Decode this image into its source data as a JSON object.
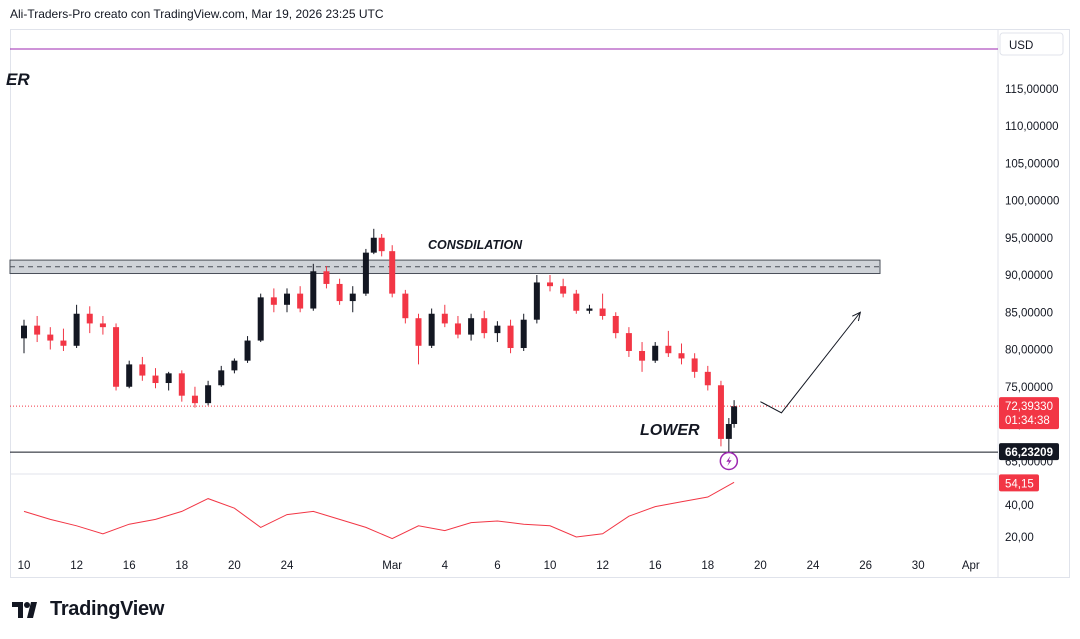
{
  "header": {
    "attribution": "Ali-Traders-Pro creato con TradingView.com, Mar 19, 2026 23:25 UTC"
  },
  "footer": {
    "brand": "TradingView"
  },
  "colors": {
    "up": "#131722",
    "down": "#f23645",
    "rsi": "#f23645",
    "zone_fill": "#cfd3d8",
    "resistance_line": "#9c27b0"
  },
  "chart_data": [
    {
      "type": "candlestick",
      "currency_label": "USD",
      "partial_title": "ER",
      "ylim": [
        65,
        120
      ],
      "y_ticks": [
        {
          "value": 115,
          "label": "115,00000"
        },
        {
          "value": 110,
          "label": "110,00000"
        },
        {
          "value": 105,
          "label": "105,00000"
        },
        {
          "value": 100,
          "label": "100,00000"
        },
        {
          "value": 95,
          "label": "95,00000"
        },
        {
          "value": 90,
          "label": "90,00000"
        },
        {
          "value": 85,
          "label": "85,00000"
        },
        {
          "value": 80,
          "label": "80,00000"
        },
        {
          "value": 75,
          "label": "75,00000"
        },
        {
          "value": 70,
          "label": "70,00000"
        },
        {
          "value": 65,
          "label": "65,00000"
        }
      ],
      "x_ticks": [
        {
          "day": 10,
          "label": "10"
        },
        {
          "day": 12,
          "label": "12"
        },
        {
          "day": 14,
          "label": "16"
        },
        {
          "day": 16,
          "label": "18"
        },
        {
          "day": 18,
          "label": "20"
        },
        {
          "day": 20,
          "label": "24"
        },
        {
          "day": 24,
          "label": "Mar"
        },
        {
          "day": 26,
          "label": "4"
        },
        {
          "day": 28,
          "label": "6"
        },
        {
          "day": 30,
          "label": "10"
        },
        {
          "day": 32,
          "label": "12"
        },
        {
          "day": 34,
          "label": "16"
        },
        {
          "day": 36,
          "label": "18"
        },
        {
          "day": 38,
          "label": "20"
        },
        {
          "day": 40,
          "label": "24"
        },
        {
          "day": 42,
          "label": "26"
        },
        {
          "day": 44,
          "label": "30"
        },
        {
          "day": 46,
          "label": "Apr"
        }
      ],
      "annotations": {
        "zone_label": "CONSDILATION",
        "zone": [
          90.2,
          92.0
        ],
        "zone_midline": 91.1,
        "lower_label": "LOWER",
        "support_line": 66.23209,
        "resistance_line": 120
      },
      "current_price": {
        "value": 72.3933,
        "label": "72,39330",
        "countdown": "01:34:38"
      },
      "support_price_label": "66,23209",
      "projection": [
        {
          "day": 38.0,
          "value": 73.0
        },
        {
          "day": 38.8,
          "value": 71.5
        },
        {
          "day": 41.8,
          "value": 85.0
        }
      ],
      "candles": [
        {
          "t": 10.0,
          "o": 81.5,
          "h": 84.0,
          "l": 79.5,
          "c": 83.2
        },
        {
          "t": 10.5,
          "o": 83.2,
          "h": 84.5,
          "l": 81.0,
          "c": 82.0
        },
        {
          "t": 11.0,
          "o": 82.0,
          "h": 83.0,
          "l": 80.0,
          "c": 81.2
        },
        {
          "t": 11.5,
          "o": 81.2,
          "h": 82.8,
          "l": 79.8,
          "c": 80.5
        },
        {
          "t": 12.0,
          "o": 80.5,
          "h": 86.0,
          "l": 80.2,
          "c": 84.8
        },
        {
          "t": 12.5,
          "o": 84.8,
          "h": 85.8,
          "l": 82.2,
          "c": 83.5
        },
        {
          "t": 13.0,
          "o": 83.5,
          "h": 84.5,
          "l": 82.0,
          "c": 83.0
        },
        {
          "t": 13.5,
          "o": 83.0,
          "h": 83.5,
          "l": 74.5,
          "c": 75.0
        },
        {
          "t": 14.0,
          "o": 75.0,
          "h": 78.5,
          "l": 74.8,
          "c": 78.0
        },
        {
          "t": 14.5,
          "o": 78.0,
          "h": 79.0,
          "l": 75.8,
          "c": 76.5
        },
        {
          "t": 15.0,
          "o": 76.5,
          "h": 77.5,
          "l": 74.8,
          "c": 75.5
        },
        {
          "t": 15.5,
          "o": 75.5,
          "h": 77.0,
          "l": 74.5,
          "c": 76.8
        },
        {
          "t": 16.0,
          "o": 76.8,
          "h": 77.2,
          "l": 73.0,
          "c": 73.8
        },
        {
          "t": 16.5,
          "o": 73.8,
          "h": 75.0,
          "l": 72.2,
          "c": 72.8
        },
        {
          "t": 17.0,
          "o": 72.8,
          "h": 75.8,
          "l": 72.5,
          "c": 75.2
        },
        {
          "t": 17.5,
          "o": 75.2,
          "h": 77.8,
          "l": 75.0,
          "c": 77.2
        },
        {
          "t": 18.0,
          "o": 77.2,
          "h": 78.8,
          "l": 76.8,
          "c": 78.5
        },
        {
          "t": 18.5,
          "o": 78.5,
          "h": 81.8,
          "l": 78.2,
          "c": 81.2
        },
        {
          "t": 19.0,
          "o": 81.2,
          "h": 87.5,
          "l": 81.0,
          "c": 87.0
        },
        {
          "t": 19.5,
          "o": 87.0,
          "h": 88.2,
          "l": 85.0,
          "c": 86.0
        },
        {
          "t": 20.0,
          "o": 86.0,
          "h": 88.2,
          "l": 85.0,
          "c": 87.5
        },
        {
          "t": 20.5,
          "o": 87.5,
          "h": 88.5,
          "l": 85.0,
          "c": 85.5
        },
        {
          "t": 21.0,
          "o": 85.5,
          "h": 91.5,
          "l": 85.2,
          "c": 90.5
        },
        {
          "t": 21.5,
          "o": 90.5,
          "h": 91.2,
          "l": 88.2,
          "c": 88.8
        },
        {
          "t": 22.0,
          "o": 88.8,
          "h": 89.5,
          "l": 86.0,
          "c": 86.5
        },
        {
          "t": 22.5,
          "o": 86.5,
          "h": 88.5,
          "l": 85.0,
          "c": 87.5
        },
        {
          "t": 23.0,
          "o": 87.5,
          "h": 93.5,
          "l": 87.2,
          "c": 93.0
        },
        {
          "t": 23.3,
          "o": 93.0,
          "h": 96.2,
          "l": 92.8,
          "c": 95.0
        },
        {
          "t": 23.6,
          "o": 95.0,
          "h": 95.5,
          "l": 92.5,
          "c": 93.2
        },
        {
          "t": 24.0,
          "o": 93.2,
          "h": 94.0,
          "l": 87.0,
          "c": 87.5
        },
        {
          "t": 24.5,
          "o": 87.5,
          "h": 88.0,
          "l": 83.5,
          "c": 84.2
        },
        {
          "t": 25.0,
          "o": 84.2,
          "h": 84.8,
          "l": 78.0,
          "c": 80.5
        },
        {
          "t": 25.5,
          "o": 80.5,
          "h": 85.5,
          "l": 80.2,
          "c": 84.8
        },
        {
          "t": 26.0,
          "o": 84.8,
          "h": 86.0,
          "l": 83.0,
          "c": 83.5
        },
        {
          "t": 26.5,
          "o": 83.5,
          "h": 84.5,
          "l": 81.5,
          "c": 82.0
        },
        {
          "t": 27.0,
          "o": 82.0,
          "h": 84.8,
          "l": 81.2,
          "c": 84.2
        },
        {
          "t": 27.5,
          "o": 84.2,
          "h": 85.2,
          "l": 81.5,
          "c": 82.2
        },
        {
          "t": 28.0,
          "o": 82.2,
          "h": 83.8,
          "l": 81.0,
          "c": 83.2
        },
        {
          "t": 28.5,
          "o": 83.2,
          "h": 84.0,
          "l": 79.5,
          "c": 80.2
        },
        {
          "t": 29.0,
          "o": 80.2,
          "h": 84.8,
          "l": 79.8,
          "c": 84.0
        },
        {
          "t": 29.5,
          "o": 84.0,
          "h": 90.0,
          "l": 83.5,
          "c": 89.0
        },
        {
          "t": 30.0,
          "o": 89.0,
          "h": 90.0,
          "l": 87.8,
          "c": 88.5
        },
        {
          "t": 30.5,
          "o": 88.5,
          "h": 89.5,
          "l": 87.0,
          "c": 87.5
        },
        {
          "t": 31.0,
          "o": 87.5,
          "h": 88.0,
          "l": 84.8,
          "c": 85.2
        },
        {
          "t": 31.5,
          "o": 85.2,
          "h": 86.0,
          "l": 84.8,
          "c": 85.5
        },
        {
          "t": 32.0,
          "o": 85.5,
          "h": 87.5,
          "l": 84.0,
          "c": 84.5
        },
        {
          "t": 32.5,
          "o": 84.5,
          "h": 85.0,
          "l": 81.5,
          "c": 82.2
        },
        {
          "t": 33.0,
          "o": 82.2,
          "h": 83.0,
          "l": 79.0,
          "c": 79.8
        },
        {
          "t": 33.5,
          "o": 79.8,
          "h": 81.0,
          "l": 77.0,
          "c": 78.5
        },
        {
          "t": 34.0,
          "o": 78.5,
          "h": 81.0,
          "l": 78.2,
          "c": 80.5
        },
        {
          "t": 34.5,
          "o": 80.5,
          "h": 82.5,
          "l": 79.0,
          "c": 79.5
        },
        {
          "t": 35.0,
          "o": 79.5,
          "h": 80.8,
          "l": 78.0,
          "c": 78.8
        },
        {
          "t": 35.5,
          "o": 78.8,
          "h": 79.5,
          "l": 76.2,
          "c": 77.0
        },
        {
          "t": 36.0,
          "o": 77.0,
          "h": 77.8,
          "l": 74.5,
          "c": 75.2
        },
        {
          "t": 36.5,
          "o": 75.2,
          "h": 75.8,
          "l": 67.0,
          "c": 68.0
        },
        {
          "t": 36.8,
          "o": 68.0,
          "h": 70.8,
          "l": 66.2,
          "c": 70.0
        },
        {
          "t": 37.0,
          "o": 70.0,
          "h": 73.2,
          "l": 69.5,
          "c": 72.39
        }
      ]
    },
    {
      "type": "line",
      "indicator": "RSI",
      "ylim": [
        13,
        58
      ],
      "y_ticks": [
        {
          "value": 40,
          "label": "40,00"
        },
        {
          "value": 20,
          "label": "20,00"
        }
      ],
      "current": {
        "value": 54.15,
        "label": "54,15"
      },
      "x": [
        10,
        11,
        12,
        13,
        14,
        15,
        16,
        17,
        18,
        19,
        20,
        21,
        22,
        23,
        24,
        25,
        26,
        27,
        28,
        29,
        30,
        31,
        32,
        33,
        34,
        35,
        36,
        37
      ],
      "values": [
        36,
        31,
        27,
        22,
        28,
        31,
        36,
        44,
        38,
        26,
        34,
        36,
        31,
        26,
        19,
        27,
        24,
        29,
        30,
        28,
        27,
        20,
        22,
        33,
        39,
        42,
        45,
        54.15
      ]
    }
  ]
}
